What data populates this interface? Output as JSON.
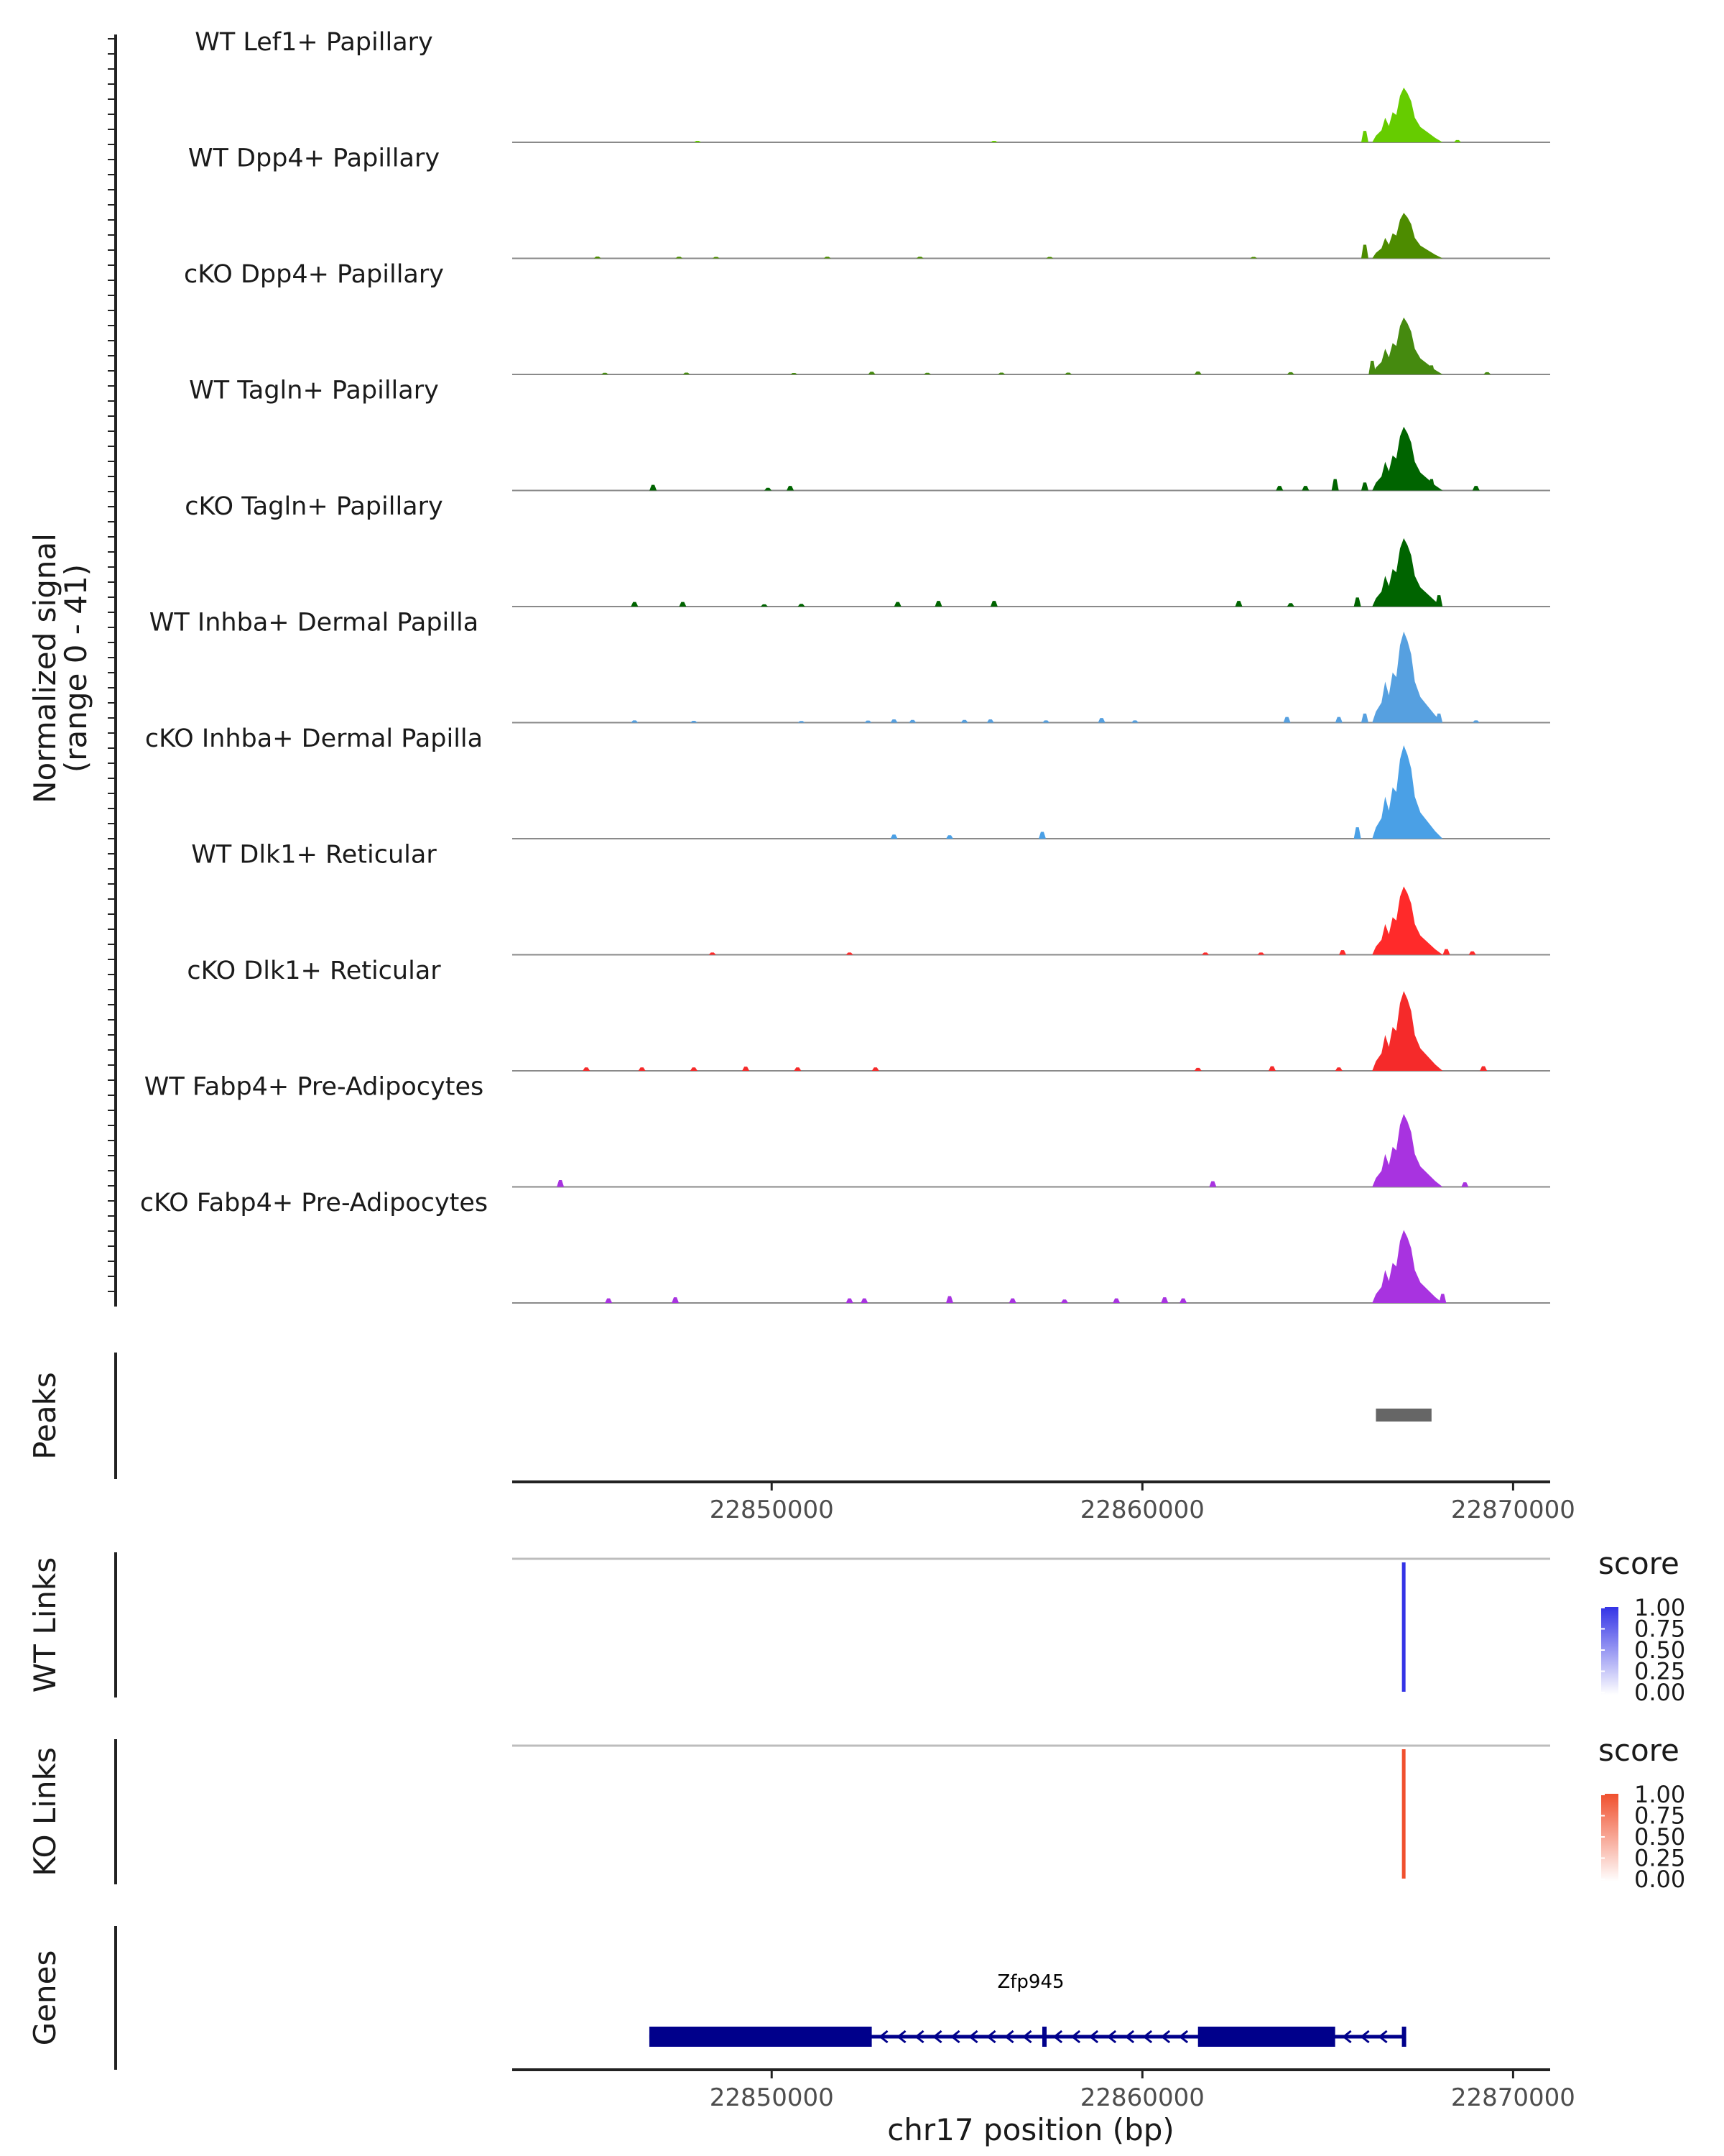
{
  "chart_data": {
    "type": "area",
    "region": {
      "chromosome": "chr17",
      "start": 22843000,
      "end": 22871000
    },
    "coverage": {
      "ylabel": "Normalized signal",
      "range_label": "(range 0 - 41)",
      "ylim": [
        0,
        41
      ],
      "tracks": [
        {
          "name": "WT Lef1+ Papillary",
          "color": "#66cc00",
          "peak_max": 24,
          "spots": [
            [
              22848000,
              0.3
            ],
            [
              22856000,
              0.3
            ],
            [
              22866000,
              5
            ],
            [
              22867500,
              3
            ],
            [
              22868500,
              1
            ]
          ]
        },
        {
          "name": "WT Dpp4+ Papillary",
          "color": "#4d8c00",
          "peak_max": 20,
          "spots": [
            [
              22845300,
              0.8
            ],
            [
              22847500,
              0.7
            ],
            [
              22848500,
              0.6
            ],
            [
              22851500,
              0.7
            ],
            [
              22854000,
              0.7
            ],
            [
              22857500,
              0.5
            ],
            [
              22863000,
              0.6
            ],
            [
              22866000,
              6
            ],
            [
              22867500,
              4
            ]
          ]
        },
        {
          "name": "cKO Dpp4+ Papillary",
          "color": "#458a0f",
          "peak_max": 25,
          "spots": [
            [
              22845500,
              0.7
            ],
            [
              22847700,
              0.8
            ],
            [
              22850600,
              0.6
            ],
            [
              22852700,
              1.2
            ],
            [
              22854200,
              0.7
            ],
            [
              22856200,
              0.8
            ],
            [
              22858000,
              0.8
            ],
            [
              22861500,
              1.3
            ],
            [
              22864000,
              1
            ],
            [
              22866200,
              6
            ],
            [
              22867800,
              4
            ],
            [
              22869300,
              1
            ]
          ]
        },
        {
          "name": "WT Tagln+ Papillary",
          "color": "#006400",
          "peak_max": 28,
          "spots": [
            [
              22846800,
              2.5
            ],
            [
              22849900,
              1.2
            ],
            [
              22850500,
              2
            ],
            [
              22863700,
              2
            ],
            [
              22864400,
              2
            ],
            [
              22865200,
              5
            ],
            [
              22866000,
              3.5
            ],
            [
              22867800,
              5
            ],
            [
              22869000,
              2
            ]
          ]
        },
        {
          "name": "cKO Tagln+ Papillary",
          "color": "#006400",
          "peak_max": 30,
          "spots": [
            [
              22846300,
              2
            ],
            [
              22847600,
              2
            ],
            [
              22849800,
              1
            ],
            [
              22850800,
              1.2
            ],
            [
              22853400,
              2
            ],
            [
              22854500,
              2.5
            ],
            [
              22856000,
              2.5
            ],
            [
              22862600,
              2.5
            ],
            [
              22864000,
              1.5
            ],
            [
              22865800,
              4
            ],
            [
              22868000,
              5
            ]
          ]
        },
        {
          "name": "WT Inhba+ Dermal Papilla",
          "color": "#56a0e0",
          "peak_max": 40,
          "spots": [
            [
              22846300,
              1
            ],
            [
              22847900,
              0.8
            ],
            [
              22850800,
              0.7
            ],
            [
              22852600,
              0.9
            ],
            [
              22853300,
              1.4
            ],
            [
              22853800,
              1.2
            ],
            [
              22855200,
              1.2
            ],
            [
              22855900,
              1.4
            ],
            [
              22857400,
              1
            ],
            [
              22858900,
              2
            ],
            [
              22859800,
              1
            ],
            [
              22863900,
              2.5
            ],
            [
              22865300,
              2.5
            ],
            [
              22866000,
              4
            ],
            [
              22868000,
              4
            ],
            [
              22869000,
              1
            ]
          ]
        },
        {
          "name": "cKO Inhba+ Dermal Papilla",
          "color": "#4aa0e6",
          "peak_max": 41,
          "spots": [
            [
              22853300,
              1.8
            ],
            [
              22854800,
              1.5
            ],
            [
              22857300,
              3
            ],
            [
              22865800,
              5
            ],
            [
              22867800,
              4
            ]
          ]
        },
        {
          "name": "WT Dlk1+ Reticular",
          "color": "#ff2a2a",
          "peak_max": 30,
          "spots": [
            [
              22848400,
              1
            ],
            [
              22852100,
              1
            ],
            [
              22861700,
              1
            ],
            [
              22863200,
              1
            ],
            [
              22865400,
              2
            ],
            [
              22868200,
              2.5
            ],
            [
              22868900,
              1.5
            ]
          ]
        },
        {
          "name": "cKO Dlk1+ Reticular",
          "color": "#f52a2a",
          "peak_max": 35,
          "spots": [
            [
              22845000,
              1.5
            ],
            [
              22846500,
              1.5
            ],
            [
              22847900,
              1.5
            ],
            [
              22849300,
              1.8
            ],
            [
              22850700,
              1.5
            ],
            [
              22852800,
              1.5
            ],
            [
              22861500,
              1.3
            ],
            [
              22863500,
              2
            ],
            [
              22865300,
              1.5
            ],
            [
              22867800,
              3
            ],
            [
              22869200,
              2
            ]
          ]
        },
        {
          "name": "WT Fabp4+ Pre-Adipocytes",
          "color": "#a833e0",
          "peak_max": 32,
          "spots": [
            [
              22844300,
              3
            ],
            [
              22861900,
              2.5
            ],
            [
              22867600,
              2
            ],
            [
              22868700,
              2
            ]
          ]
        },
        {
          "name": "cKO Fabp4+ Pre-Adipocytes",
          "color": "#a833e0",
          "peak_max": 32,
          "spots": [
            [
              22845600,
              2
            ],
            [
              22847400,
              2.5
            ],
            [
              22852100,
              2
            ],
            [
              22852500,
              2
            ],
            [
              22854800,
              3
            ],
            [
              22856500,
              2
            ],
            [
              22857900,
              1.5
            ],
            [
              22859300,
              2
            ],
            [
              22860600,
              2.5
            ],
            [
              22861100,
              2
            ],
            [
              22868100,
              4
            ]
          ]
        }
      ]
    },
    "peaks": {
      "label": "Peaks",
      "regions": [
        [
          22866300,
          22867800
        ]
      ],
      "color": "#666666"
    },
    "x_axis": {
      "ticks": [
        22850000,
        22860000,
        22870000
      ],
      "tick_labels": [
        "22850000",
        "22860000",
        "22870000"
      ]
    },
    "links": [
      {
        "label": "WT Links",
        "legend_title": "score",
        "color": "#3333e6",
        "position": 22867050,
        "score": 1.0,
        "legend_ticks": [
          "1.00",
          "0.75",
          "0.50",
          "0.25",
          "0.00"
        ]
      },
      {
        "label": "KO Links",
        "legend_title": "score",
        "color": "#f0502e",
        "position": 22867050,
        "score": 1.0,
        "legend_ticks": [
          "1.00",
          "0.75",
          "0.50",
          "0.25",
          "0.00"
        ]
      }
    ],
    "genes": {
      "label": "Genes",
      "gene": "Zfp945",
      "strand": "-",
      "color": "#00008b",
      "span": [
        22846700,
        22867100
      ],
      "exons": [
        [
          22846700,
          22852700
        ],
        [
          22857300,
          22857400
        ],
        [
          22861500,
          22865200
        ],
        [
          22867000,
          22867100
        ]
      ]
    },
    "xlabel": "chr17 position (bp)"
  }
}
